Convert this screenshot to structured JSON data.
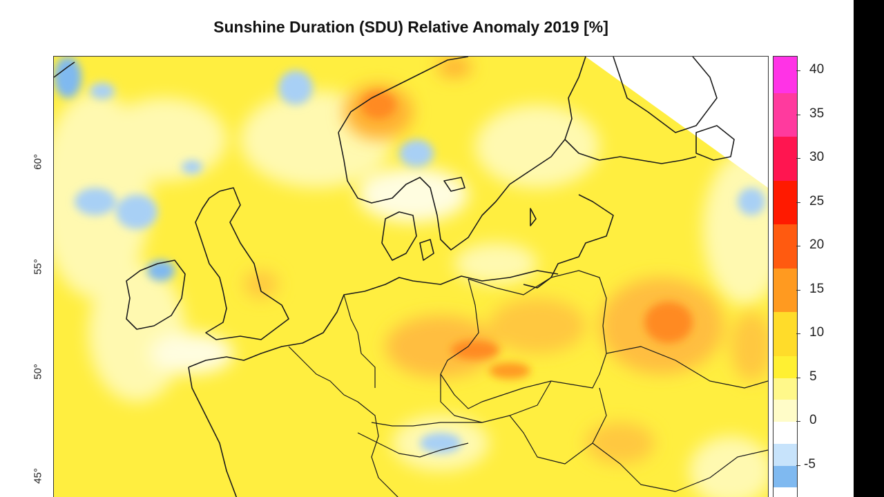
{
  "title": "Sunshine Duration (SDU) Relative Anomaly 2019 [%]",
  "map": {
    "latitude_labels": [
      {
        "value": 60,
        "text": "60°"
      },
      {
        "value": 55,
        "text": "55°"
      },
      {
        "value": 50,
        "text": "50°"
      },
      {
        "value": 45,
        "text": "45°"
      }
    ],
    "region": "Europe"
  },
  "colorbar": {
    "tick_labels": [
      "40",
      "35",
      "30",
      "25",
      "20",
      "15",
      "10",
      "5",
      "0",
      "-5"
    ],
    "bins": [
      {
        "from": 37.5,
        "to": 42.5,
        "color": "#ff33e6"
      },
      {
        "from": 32.5,
        "to": 37.5,
        "color": "#ff3a9e"
      },
      {
        "from": 27.5,
        "to": 32.5,
        "color": "#ff1550"
      },
      {
        "from": 22.5,
        "to": 27.5,
        "color": "#ff1a00"
      },
      {
        "from": 17.5,
        "to": 22.5,
        "color": "#ff5a10"
      },
      {
        "from": 12.5,
        "to": 17.5,
        "color": "#ff9a20"
      },
      {
        "from": 7.5,
        "to": 12.5,
        "color": "#ffdc2a"
      },
      {
        "from": 5.0,
        "to": 7.5,
        "color": "#fff032"
      },
      {
        "from": 2.5,
        "to": 5.0,
        "color": "#fff88a"
      },
      {
        "from": 0.0,
        "to": 2.5,
        "color": "#fffcc8"
      },
      {
        "from": -2.5,
        "to": 0.0,
        "color": "#ffffff"
      },
      {
        "from": -5.0,
        "to": -2.5,
        "color": "#c7e3fb"
      },
      {
        "from": -7.5,
        "to": -5.0,
        "color": "#7fb9f0"
      }
    ]
  },
  "colors": {
    "base_yellow": "#ffee40",
    "light_yellow": "#fff9b0",
    "orange": "#ffb030",
    "dark_orange": "#ff8a20",
    "blue": "#a8d0f5",
    "coastline": "#1a1a1a"
  }
}
